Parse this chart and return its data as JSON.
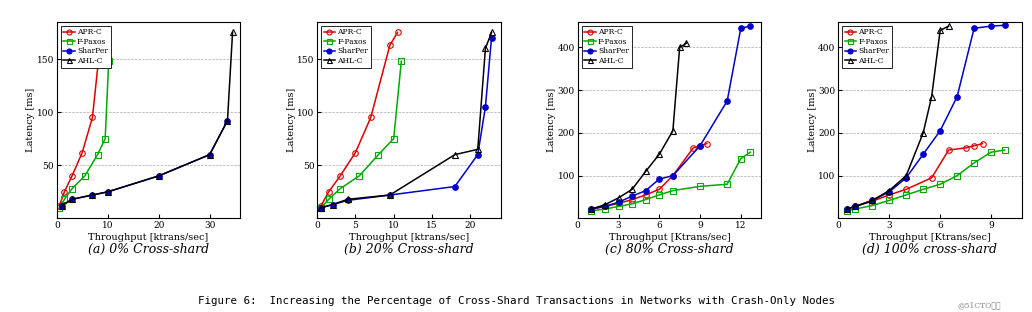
{
  "subplots": [
    {
      "title": "(a) 0% Cross-shard",
      "xlabel": "Throughput [ktrans/sec]",
      "ylabel": "Latency [ms]",
      "xlim": [
        0,
        36
      ],
      "ylim": [
        0,
        185
      ],
      "yticks": [
        50,
        100,
        150
      ],
      "xticks": [
        0,
        10,
        20,
        30
      ],
      "series": [
        {
          "label": "APR-C",
          "color": "#dd0000",
          "marker": "o",
          "fillstyle": "none",
          "x": [
            0.5,
            1.5,
            3.0,
            5.0,
            7.0,
            8.5,
            9.3
          ],
          "y": [
            12,
            25,
            40,
            62,
            95,
            163,
            175
          ]
        },
        {
          "label": "F-Paxos",
          "color": "#00aa00",
          "marker": "s",
          "fillstyle": "none",
          "x": [
            0.5,
            1.5,
            3.0,
            5.5,
            8.0,
            9.5,
            10.2
          ],
          "y": [
            10,
            18,
            28,
            40,
            60,
            75,
            148
          ]
        },
        {
          "label": "SharPer",
          "color": "#0000cc",
          "marker": "o",
          "fillstyle": "full",
          "x": [
            1.0,
            3.0,
            7.0,
            10.0,
            20.0,
            30.0,
            33.5
          ],
          "y": [
            12,
            18,
            22,
            25,
            40,
            60,
            92
          ]
        },
        {
          "label": "AHL-C",
          "color": "#000000",
          "marker": "^",
          "fillstyle": "none",
          "x": [
            1.0,
            3.0,
            7.0,
            10.0,
            20.0,
            30.0,
            33.5,
            34.5
          ],
          "y": [
            12,
            18,
            22,
            25,
            40,
            60,
            92,
            175
          ]
        }
      ]
    },
    {
      "title": "(b) 20% Cross-shard",
      "xlabel": "Throughput [ktrans/sec]",
      "ylabel": "Latency [ms]",
      "xlim": [
        0,
        24
      ],
      "ylim": [
        0,
        185
      ],
      "yticks": [
        50,
        100,
        150
      ],
      "xticks": [
        0,
        5,
        10,
        15,
        20
      ],
      "series": [
        {
          "label": "APR-C",
          "color": "#dd0000",
          "marker": "o",
          "fillstyle": "none",
          "x": [
            0.5,
            1.5,
            3.0,
            5.0,
            7.0,
            9.5,
            10.5
          ],
          "y": [
            12,
            25,
            40,
            62,
            95,
            163,
            175
          ]
        },
        {
          "label": "F-Paxos",
          "color": "#00aa00",
          "marker": "s",
          "fillstyle": "none",
          "x": [
            0.5,
            1.5,
            3.0,
            5.5,
            8.0,
            10.0,
            11.0
          ],
          "y": [
            10,
            18,
            28,
            40,
            60,
            75,
            148
          ]
        },
        {
          "label": "SharPer",
          "color": "#0000cc",
          "marker": "o",
          "fillstyle": "full",
          "x": [
            0.5,
            2.0,
            4.0,
            9.5,
            18.0,
            21.0,
            22.0,
            22.8
          ],
          "y": [
            10,
            13,
            17,
            22,
            30,
            60,
            105,
            170
          ]
        },
        {
          "label": "AHL-C",
          "color": "#000000",
          "marker": "^",
          "fillstyle": "none",
          "x": [
            0.5,
            2.0,
            4.0,
            9.5,
            18.0,
            21.0,
            22.0,
            22.8
          ],
          "y": [
            10,
            13,
            18,
            22,
            60,
            65,
            160,
            175
          ]
        }
      ]
    },
    {
      "title": "(c) 80% Cross-shard",
      "xlabel": "Throughput [Ktrans/sec]",
      "ylabel": "Latency [ms]",
      "xlim": [
        0,
        13.5
      ],
      "ylim": [
        0,
        460
      ],
      "yticks": [
        100,
        200,
        300,
        400
      ],
      "xticks": [
        0,
        3,
        6,
        9,
        12
      ],
      "series": [
        {
          "label": "APR-C",
          "color": "#dd0000",
          "marker": "o",
          "fillstyle": "none",
          "x": [
            1.0,
            2.0,
            3.0,
            4.0,
            5.0,
            6.0,
            7.0,
            8.5,
            9.0,
            9.5
          ],
          "y": [
            22,
            28,
            35,
            44,
            55,
            68,
            100,
            165,
            170,
            175
          ]
        },
        {
          "label": "F-Paxos",
          "color": "#00aa00",
          "marker": "s",
          "fillstyle": "none",
          "x": [
            1.0,
            2.0,
            3.0,
            4.0,
            5.0,
            6.0,
            7.0,
            9.0,
            11.0,
            12.0,
            12.7
          ],
          "y": [
            18,
            22,
            28,
            34,
            44,
            55,
            65,
            75,
            80,
            140,
            155
          ]
        },
        {
          "label": "SharPer",
          "color": "#0000cc",
          "marker": "o",
          "fillstyle": "full",
          "x": [
            1.0,
            2.0,
            3.0,
            4.0,
            5.0,
            6.0,
            7.0,
            9.0,
            11.0,
            12.0,
            12.7
          ],
          "y": [
            22,
            28,
            38,
            52,
            65,
            92,
            100,
            170,
            275,
            445,
            450
          ]
        },
        {
          "label": "AHL-C",
          "color": "#000000",
          "marker": "^",
          "fillstyle": "none",
          "x": [
            1.0,
            2.0,
            3.0,
            4.0,
            5.0,
            6.0,
            7.0,
            7.5,
            8.0
          ],
          "y": [
            22,
            32,
            48,
            68,
            110,
            150,
            205,
            400,
            410
          ]
        }
      ]
    },
    {
      "title": "(d) 100% cross-shard",
      "xlabel": "Throughput [Ktrans/sec]",
      "ylabel": "Latency [ms]",
      "xlim": [
        0,
        10.8
      ],
      "ylim": [
        0,
        460
      ],
      "yticks": [
        100,
        200,
        300,
        400
      ],
      "xticks": [
        0,
        3,
        6,
        9
      ],
      "series": [
        {
          "label": "APR-C",
          "color": "#dd0000",
          "marker": "o",
          "fillstyle": "none",
          "x": [
            0.5,
            1.0,
            2.0,
            3.0,
            4.0,
            5.5,
            6.5,
            7.5,
            8.0,
            8.5
          ],
          "y": [
            22,
            28,
            40,
            55,
            68,
            95,
            160,
            165,
            170,
            175
          ]
        },
        {
          "label": "F-Paxos",
          "color": "#00aa00",
          "marker": "s",
          "fillstyle": "none",
          "x": [
            0.5,
            1.0,
            2.0,
            3.0,
            4.0,
            5.0,
            6.0,
            7.0,
            8.0,
            9.0,
            9.8
          ],
          "y": [
            18,
            22,
            30,
            42,
            55,
            68,
            80,
            100,
            130,
            155,
            160
          ]
        },
        {
          "label": "SharPer",
          "color": "#0000cc",
          "marker": "o",
          "fillstyle": "full",
          "x": [
            0.5,
            1.0,
            2.0,
            3.0,
            4.0,
            5.0,
            6.0,
            7.0,
            8.0,
            9.0,
            9.8
          ],
          "y": [
            22,
            28,
            42,
            62,
            95,
            150,
            205,
            285,
            445,
            450,
            452
          ]
        },
        {
          "label": "AHL-C",
          "color": "#000000",
          "marker": "^",
          "fillstyle": "none",
          "x": [
            0.5,
            1.0,
            2.0,
            3.0,
            4.0,
            5.0,
            5.5,
            6.0,
            6.5
          ],
          "y": [
            22,
            28,
            42,
            65,
            100,
            200,
            285,
            440,
            450
          ]
        }
      ]
    }
  ],
  "figure_caption": "Figure 6:  Increasing the Percentage of Cross-Shard Transactions in Networks with Crash-Only Nodes",
  "watermark": "@51CTO博客",
  "bg_color": "#ffffff"
}
